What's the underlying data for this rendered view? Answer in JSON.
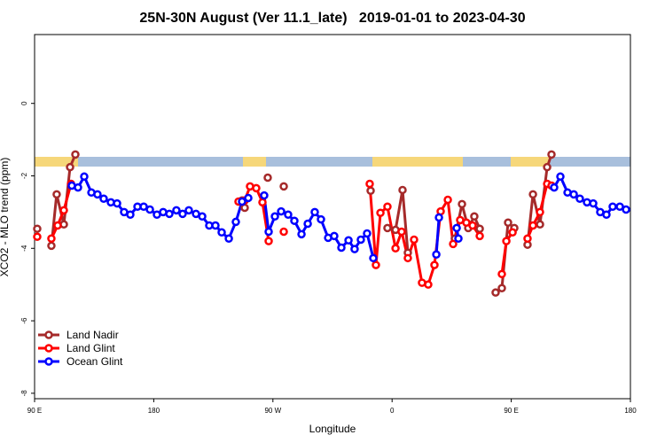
{
  "chart_data": {
    "type": "line",
    "title": "25N-30N August (Ver 11.1_late)   2019-01-01 to 2023-04-30",
    "x_label": "Longitude",
    "y_label": "XCO2 - MLO trend (ppm)",
    "xlim": [
      90,
      540
    ],
    "xticks": [
      {
        "value": 90,
        "label": "90 E"
      },
      180,
      {
        "value": 270,
        "label": "90 W"
      },
      {
        "value": 360,
        "label": "0"
      },
      {
        "value": 450,
        "label": "90 E"
      },
      {
        "value": 540,
        "label": "180"
      }
    ],
    "ylim": [
      -8.15,
      1.9
    ],
    "yticks": [
      -8,
      -6,
      -4,
      -2,
      0
    ],
    "legend": "bottom-left",
    "series": [
      {
        "name": "Land Nadir",
        "color": "#a52a2a",
        "x": [
          92.0,
          null,
          102.7,
          106.7,
          112.1,
          116.8,
          120.8,
          null,
          246.7,
          248.7,
          null,
          266.1,
          null,
          278.2,
          null,
          343.8,
          null,
          356.5,
          362.6,
          367.9,
          371.9,
          null,
          407.4,
          412.8,
          417.5,
          422.1,
          426.2,
          null,
          438.2,
          442.9,
          447.6,
          452.3,
          null,
          462.3,
          466.4,
          471.7,
          477.1,
          480.4
        ],
        "values": [
          -3.46,
          null,
          -3.93,
          -2.51,
          -3.34,
          -1.76,
          -1.41,
          null,
          -2.68,
          -2.88,
          null,
          -2.05,
          null,
          -2.29,
          null,
          -2.41,
          null,
          -3.44,
          -3.49,
          -2.39,
          -4.12,
          null,
          -3.73,
          -2.78,
          -3.44,
          -3.12,
          -3.46,
          null,
          -5.22,
          -5.1,
          -3.29,
          -3.44,
          null,
          -3.9,
          -2.51,
          -3.34,
          -1.76,
          -1.41
        ]
      },
      {
        "name": "Land Glint",
        "color": "#ff0000",
        "x": [
          92.0,
          null,
          102.7,
          107.4,
          112.1,
          117.5,
          null,
          244.0,
          248.7,
          252.7,
          257.4,
          262.1,
          266.8,
          null,
          278.2,
          null,
          343.1,
          347.8,
          351.2,
          356.5,
          362.6,
          367.2,
          371.9,
          376.6,
          382.6,
          387.3,
          392.0,
          396.7,
          402.1,
          406.1,
          411.4,
          416.1,
          420.8,
          426.2,
          null,
          442.9,
          446.3,
          451.0,
          null,
          462.3,
          466.4,
          471.7,
          477.1,
          480.4
        ],
        "values": [
          -3.68,
          null,
          -3.73,
          -3.37,
          -2.95,
          -2.22,
          null,
          -2.71,
          -2.68,
          -2.29,
          -2.34,
          -2.73,
          -3.8,
          null,
          -3.54,
          null,
          -2.22,
          -4.46,
          -3.02,
          -2.85,
          -4.0,
          -3.54,
          -4.27,
          -3.76,
          -4.95,
          -5.0,
          -4.46,
          -2.98,
          -2.66,
          -3.88,
          -3.22,
          -3.29,
          -3.37,
          -3.66,
          null,
          -4.71,
          -3.8,
          -3.56,
          null,
          -3.73,
          -3.37,
          -3.0,
          -2.22,
          -2.27
        ]
      },
      {
        "name": "Ocean Glint",
        "color": "#0000ff",
        "x": [
          118.1,
          122.8,
          127.5,
          132.9,
          137.5,
          142.2,
          147.6,
          152.3,
          157.6,
          162.3,
          167.7,
          172.4,
          177.1,
          182.4,
          187.1,
          191.8,
          197.1,
          201.8,
          206.5,
          211.9,
          216.6,
          221.9,
          226.6,
          231.3,
          236.7,
          242.0,
          246.7,
          251.4,
          null,
          263.4,
          266.8,
          271.5,
          276.2,
          281.5,
          286.2,
          291.6,
          296.3,
          301.6,
          306.3,
          311.7,
          316.3,
          321.7,
          327.1,
          331.7,
          336.4,
          341.1,
          345.8,
          null,
          393.4,
          395.4,
          null,
          408.8,
          410.1,
          null,
          482.4,
          487.1,
          492.5,
          497.2,
          501.8,
          507.2,
          511.9,
          517.2,
          521.9,
          526.6,
          532.0,
          536.7
        ],
        "values": [
          -2.27,
          -2.32,
          -2.02,
          -2.46,
          -2.51,
          -2.63,
          -2.73,
          -2.76,
          -3.0,
          -3.07,
          -2.85,
          -2.85,
          -2.93,
          -3.07,
          -3.0,
          -3.05,
          -2.95,
          -3.05,
          -2.95,
          -3.05,
          -3.12,
          -3.37,
          -3.37,
          -3.56,
          -3.73,
          -3.27,
          -2.71,
          -2.61,
          null,
          -2.54,
          -3.54,
          -3.12,
          -2.98,
          -3.07,
          -3.24,
          -3.61,
          -3.32,
          -3.0,
          -3.2,
          -3.71,
          -3.66,
          -3.98,
          -3.78,
          -4.02,
          -3.76,
          -3.59,
          -4.27,
          null,
          -4.17,
          -3.15,
          null,
          -3.44,
          -3.73,
          null,
          -2.32,
          -2.02,
          -2.46,
          -2.51,
          -2.63,
          -2.73,
          -2.76,
          -3.0,
          -3.07,
          -2.85,
          -2.85,
          -2.93
        ]
      }
    ]
  }
}
